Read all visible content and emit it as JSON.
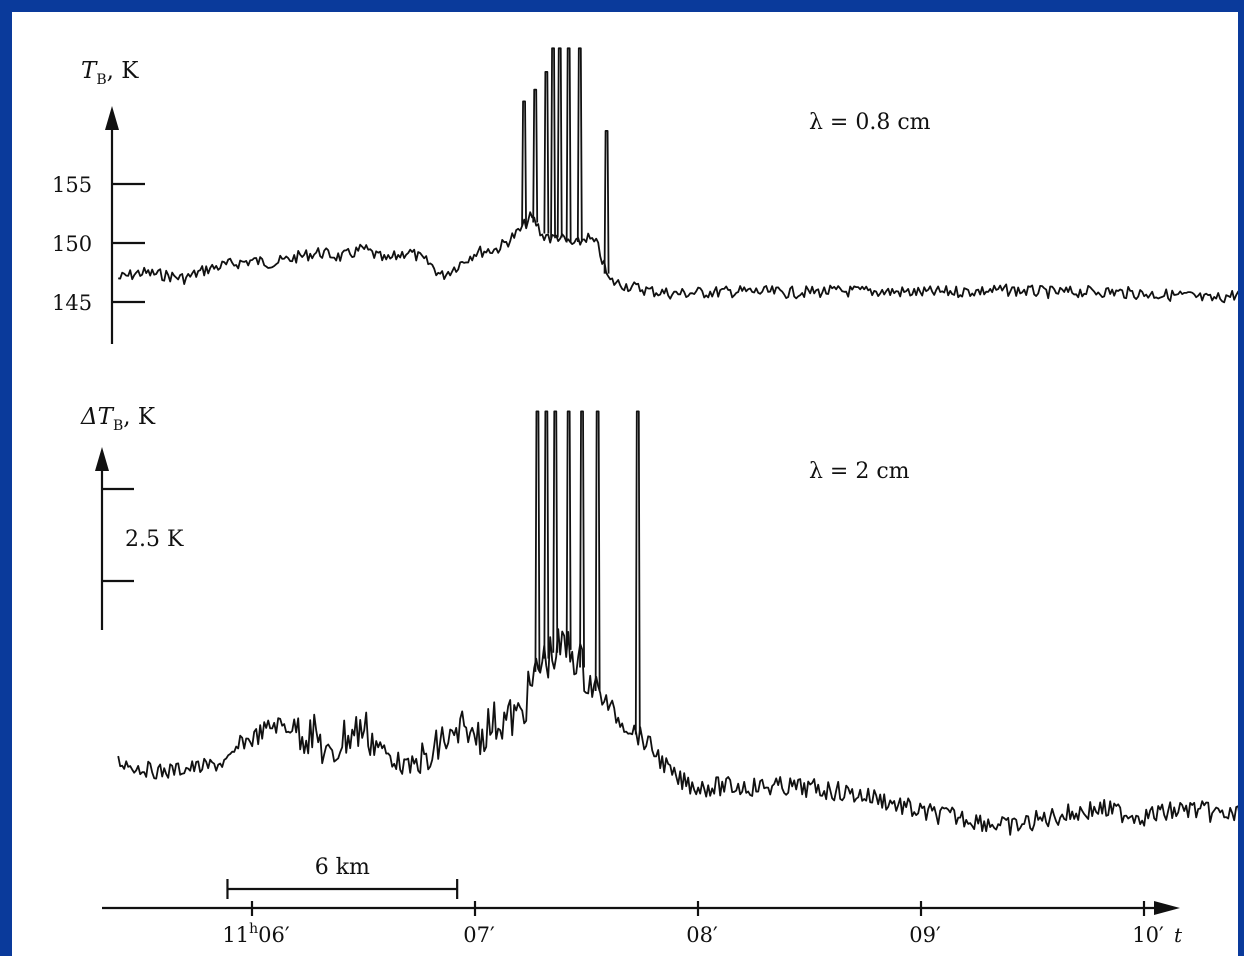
{
  "chart_data": [
    {
      "type": "line",
      "ylabel": "T",
      "ylabel_sub": "B",
      "ylabel_unit": ", K",
      "annotation": "λ = 0.8 cm",
      "yticks": [
        "155",
        "150",
        "145"
      ],
      "ytick_values": [
        155,
        150,
        145
      ],
      "x_min_minutes": 5.38,
      "x_max_minutes": 10.48,
      "series": [
        {
          "description": "brightness temperature trace",
          "x": [
            5.4,
            5.5,
            5.6,
            5.7,
            5.8,
            5.9,
            6.0,
            6.1,
            6.2,
            6.3,
            6.4,
            6.5,
            6.6,
            6.7,
            6.8,
            6.85,
            6.9,
            7.0,
            7.1,
            7.15,
            7.2,
            7.25,
            7.28,
            7.3,
            7.32,
            7.34,
            7.37,
            7.4,
            7.45,
            7.5,
            7.55,
            7.6,
            7.7,
            7.8,
            7.9,
            8.0,
            8.2,
            8.4,
            8.6,
            8.8,
            9.0,
            9.2,
            9.4,
            9.6,
            9.8,
            10.0,
            10.2,
            10.3,
            10.4,
            10.47
          ],
          "y": [
            147.0,
            147.5,
            147.3,
            147.0,
            147.8,
            148.2,
            148.5,
            148.3,
            148.8,
            149.2,
            148.8,
            149.5,
            148.5,
            149.3,
            148.2,
            147.2,
            147.8,
            149.2,
            149.5,
            150.2,
            151.0,
            152.2,
            151.5,
            150.5,
            150.8,
            150.3,
            150.6,
            150.2,
            149.8,
            150.5,
            149.8,
            146.8,
            146.3,
            145.9,
            145.7,
            145.8,
            145.9,
            145.8,
            145.9,
            145.9,
            145.8,
            145.9,
            146.0,
            145.8,
            145.9,
            145.7,
            145.5,
            145.2,
            145.6,
            145.7
          ],
          "spikes": [
            {
              "x": 7.22,
              "peak": 162.0
            },
            {
              "x": 7.27,
              "peak": 163.0
            },
            {
              "x": 7.32,
              "peak": 164.5
            },
            {
              "x": 7.35,
              "peak": 166.5
            },
            {
              "x": 7.38,
              "peak": 166.5
            },
            {
              "x": 7.42,
              "peak": 166.5
            },
            {
              "x": 7.47,
              "peak": 166.5
            },
            {
              "x": 7.59,
              "peak": 159.5
            }
          ]
        }
      ]
    },
    {
      "type": "line",
      "ylabel": "ΔT",
      "ylabel_sub": "B",
      "ylabel_unit": ", K",
      "annotation": "λ = 2 cm",
      "scale_label": "2.5 K",
      "scale_value": 2.5,
      "x_min_minutes": 5.38,
      "x_max_minutes": 10.48,
      "series": [
        {
          "description": "brightness temperature increment trace (relative, K)",
          "x": [
            5.4,
            5.5,
            5.6,
            5.7,
            5.8,
            5.9,
            5.95,
            6.0,
            6.1,
            6.2,
            6.3,
            6.35,
            6.4,
            6.5,
            6.6,
            6.7,
            6.75,
            6.8,
            6.85,
            6.9,
            6.95,
            7.0,
            7.1,
            7.2,
            7.25,
            7.3,
            7.35,
            7.4,
            7.45,
            7.5,
            7.55,
            7.6,
            7.65,
            7.7,
            7.75,
            7.8,
            7.85,
            7.9,
            8.0,
            8.2,
            8.4,
            8.6,
            8.8,
            9.0,
            9.2,
            9.4,
            9.6,
            9.8,
            10.0,
            10.2,
            10.4,
            10.47
          ],
          "y": [
            0.3,
            0.1,
            0.0,
            0.1,
            0.15,
            0.3,
            0.8,
            0.9,
            1.3,
            1.2,
            0.9,
            0.2,
            0.9,
            1.2,
            0.5,
            0.1,
            0.3,
            0.2,
            0.9,
            0.8,
            1.1,
            1.0,
            1.4,
            1.5,
            2.3,
            3.0,
            3.2,
            3.4,
            3.2,
            2.6,
            2.2,
            1.8,
            1.4,
            1.2,
            0.9,
            0.6,
            0.2,
            -0.2,
            -0.4,
            -0.4,
            -0.4,
            -0.5,
            -0.7,
            -1.1,
            -1.25,
            -1.5,
            -1.2,
            -1.0,
            -1.2,
            -1.0,
            -1.2,
            -1.1
          ],
          "spikes": [
            {
              "x": 7.28,
              "peak": 9.8
            },
            {
              "x": 7.32,
              "peak": 9.8
            },
            {
              "x": 7.36,
              "peak": 9.8
            },
            {
              "x": 7.42,
              "peak": 9.8
            },
            {
              "x": 7.48,
              "peak": 9.8
            },
            {
              "x": 7.55,
              "peak": 9.8
            },
            {
              "x": 7.73,
              "peak": 9.8
            }
          ]
        }
      ]
    }
  ],
  "x_axis": {
    "tick_minutes": [
      6,
      7,
      8,
      9,
      10
    ],
    "tick_labels": [
      {
        "pre": "11",
        "sup": "h",
        "post": "06′"
      },
      {
        "pre": "",
        "sup": "",
        "post": "07′"
      },
      {
        "pre": "",
        "sup": "",
        "post": "08′"
      },
      {
        "pre": "",
        "sup": "",
        "post": "09′"
      },
      {
        "pre": "",
        "sup": "",
        "post": "10′"
      }
    ],
    "label": "t"
  },
  "scale_bar": {
    "label": "6 km",
    "from_minutes": 5.89,
    "to_minutes": 6.92
  },
  "colors": {
    "background": "#0a3a9b",
    "plot_area": "#ffffff",
    "ink": "#111111"
  }
}
